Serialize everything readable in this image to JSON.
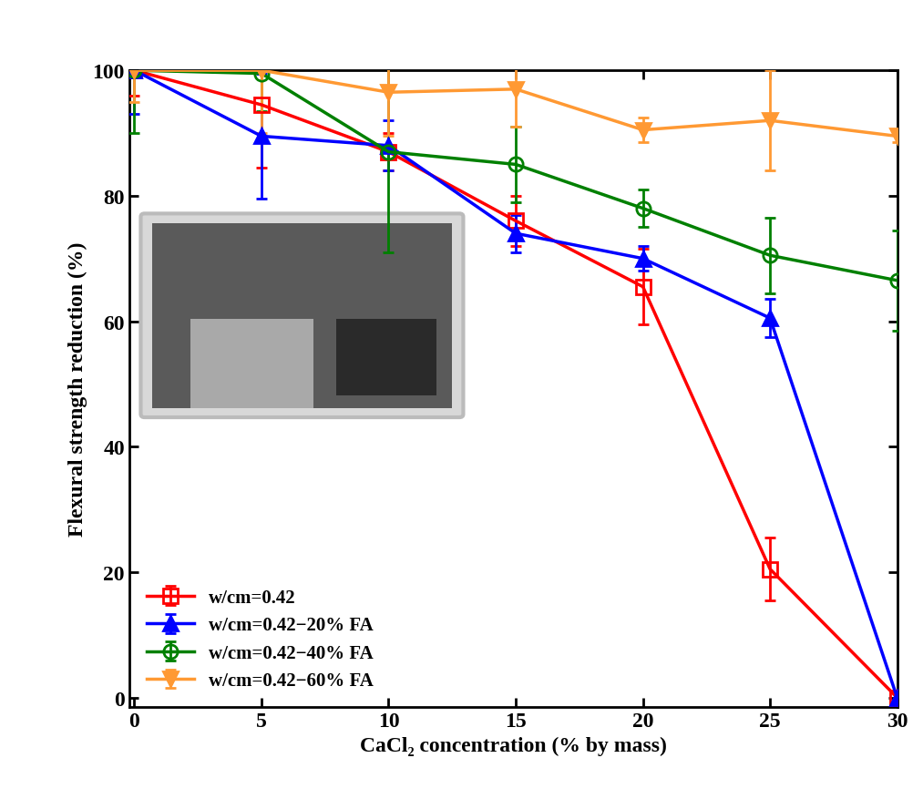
{
  "chart_data": {
    "type": "line",
    "x_label": "CaCl₂ concentration (% by mass)",
    "y_label": "Flexural strength reduction (%)",
    "x": [
      0,
      5,
      10,
      15,
      20,
      25,
      30
    ],
    "series": [
      {
        "name": "w/cm=0.42",
        "color": "#ff0000",
        "marker": "open_square",
        "line_style": "solid",
        "values": [
          100,
          94.5,
          87,
          76,
          65.5,
          20.5,
          0
        ],
        "errors": [
          4,
          10,
          3,
          4,
          6,
          5,
          1
        ]
      },
      {
        "name": "w/cm=0.42−20% FA",
        "color": "#0000ff",
        "marker": "triangle_up",
        "line_style": "solid",
        "values": [
          100,
          89.5,
          88,
          74,
          70,
          60.5,
          0
        ],
        "errors": [
          7,
          10,
          4,
          3,
          2,
          3,
          1
        ]
      },
      {
        "name": "w/cm=0.42−40% FA",
        "color": "#008000",
        "marker": "open_circle",
        "line_style": "solid",
        "values": [
          100,
          99.5,
          87,
          85,
          78,
          70.5,
          66.5
        ],
        "errors": [
          10,
          6,
          16,
          6,
          3,
          6,
          8
        ]
      },
      {
        "name": "w/cm=0.42−60% FA",
        "color": "#ff9933",
        "marker": "triangle_down",
        "line_style": "solid",
        "values": [
          100,
          100,
          96.5,
          97,
          90.5,
          92,
          89.5
        ],
        "errors": [
          5,
          10,
          7,
          6,
          2,
          8,
          1
        ]
      }
    ],
    "xlim": [
      -0.2,
      30
    ],
    "ylim": [
      -1.5,
      100
    ],
    "xticks": [
      0,
      5,
      10,
      15,
      20,
      25,
      30
    ],
    "yticks": [
      0,
      20,
      40,
      60,
      80,
      100
    ],
    "grid": false,
    "legend": "lower left"
  }
}
